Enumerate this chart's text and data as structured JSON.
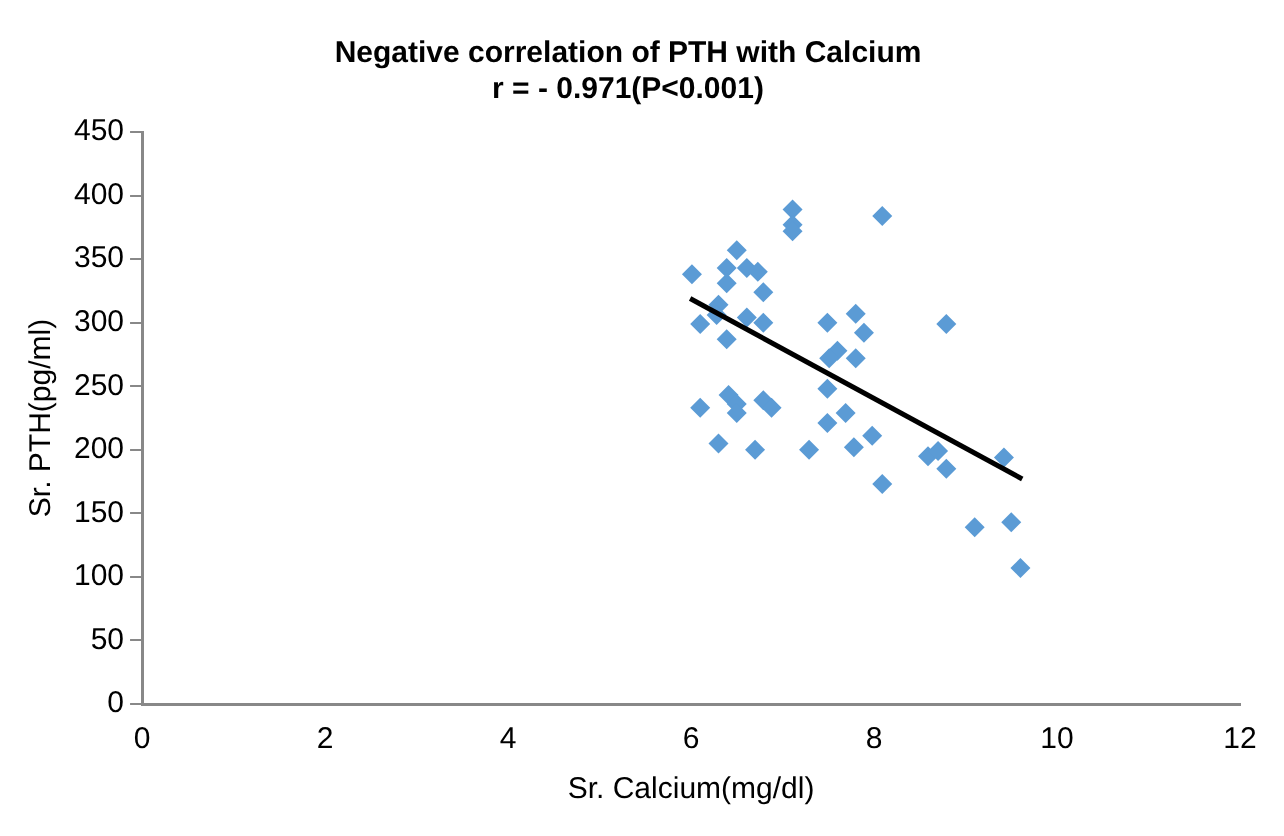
{
  "chart_data": {
    "type": "scatter",
    "title": "Negative correlation of PTH with Calcium",
    "subtitle": "r = - 0.971(P<0.001)",
    "xlabel": "Sr. Calcium(mg/dl)",
    "ylabel": "Sr. PTH(pg/ml)",
    "xlim": [
      0,
      12
    ],
    "xticks": [
      0,
      2,
      4,
      6,
      8,
      10,
      12
    ],
    "ylim": [
      0,
      450
    ],
    "yticks": [
      0,
      50,
      100,
      150,
      200,
      250,
      300,
      350,
      400,
      450
    ],
    "grid": false,
    "legend": false,
    "marker": "diamond",
    "series": [
      {
        "color": "#5b9bd5",
        "x": [
          7.11,
          7.11,
          7.11,
          8.09,
          6.01,
          6.5,
          6.39,
          6.61,
          6.73,
          6.39,
          6.79,
          6.3,
          6.28,
          6.61,
          6.79,
          6.1,
          6.39,
          7.49,
          7.8,
          7.89,
          8.79,
          7.6,
          7.51,
          7.8,
          7.49,
          6.1,
          6.41,
          6.5,
          6.5,
          6.79,
          6.88,
          7.69,
          7.49,
          7.98,
          6.3,
          6.7,
          7.29,
          7.78,
          8.59,
          8.7,
          8.79,
          8.09,
          9.42,
          9.1,
          9.5,
          9.6
        ],
        "values": [
          389,
          377,
          372,
          384,
          338,
          357,
          343,
          343,
          340,
          331,
          324,
          314,
          306,
          304,
          300,
          299,
          287,
          300,
          307,
          292,
          299,
          278,
          272,
          272,
          248,
          233,
          243,
          236,
          229,
          239,
          233,
          229,
          221,
          211,
          205,
          200,
          200,
          202,
          195,
          199,
          185,
          173,
          194,
          139,
          143,
          107
        ]
      },
      {
        "type": "line",
        "color": "#000000",
        "marker": "none",
        "x": [
          5.99,
          9.62
        ],
        "values": [
          319,
          177
        ]
      }
    ]
  }
}
